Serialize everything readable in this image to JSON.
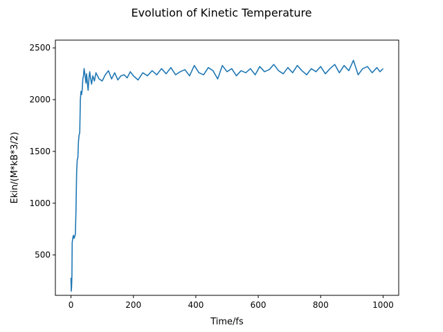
{
  "chart_data": {
    "type": "line",
    "title": "Evolution of Kinetic Temperature",
    "xlabel": "Time/fs",
    "ylabel": "Ekin/(M*kB*3/2)",
    "xlim": [
      -50,
      1050
    ],
    "ylim": [
      110,
      2575
    ],
    "xticks": [
      0,
      200,
      400,
      600,
      800,
      1000
    ],
    "yticks": [
      500,
      1000,
      1500,
      2000,
      2500
    ],
    "grid": false,
    "legend": "none",
    "series": [
      {
        "color": "#1f77b4",
        "x": [
          0,
          1,
          2,
          3,
          4,
          6,
          8,
          10,
          12,
          14,
          16,
          18,
          20,
          22,
          24,
          26,
          28,
          30,
          32,
          34,
          36,
          38,
          40,
          42,
          44,
          46,
          48,
          50,
          52,
          55,
          58,
          60,
          63,
          66,
          70,
          75,
          80,
          90,
          100,
          110,
          120,
          130,
          140,
          150,
          160,
          170,
          180,
          190,
          200,
          215,
          230,
          245,
          260,
          275,
          290,
          305,
          320,
          335,
          350,
          365,
          380,
          395,
          410,
          425,
          440,
          455,
          470,
          485,
          500,
          515,
          530,
          545,
          560,
          575,
          590,
          605,
          620,
          635,
          650,
          665,
          680,
          695,
          710,
          725,
          740,
          755,
          770,
          785,
          800,
          815,
          830,
          845,
          860,
          875,
          890,
          905,
          920,
          935,
          950,
          965,
          980,
          990,
          1000
        ],
        "y": [
          280,
          150,
          190,
          300,
          620,
          670,
          690,
          660,
          680,
          700,
          940,
          1300,
          1420,
          1440,
          1600,
          1660,
          1680,
          2000,
          2080,
          2050,
          2100,
          2200,
          2230,
          2300,
          2260,
          2210,
          2160,
          2250,
          2180,
          2090,
          2220,
          2270,
          2200,
          2150,
          2230,
          2180,
          2260,
          2200,
          2180,
          2240,
          2280,
          2200,
          2260,
          2190,
          2230,
          2240,
          2210,
          2270,
          2230,
          2190,
          2260,
          2230,
          2280,
          2240,
          2300,
          2250,
          2310,
          2240,
          2270,
          2290,
          2230,
          2330,
          2260,
          2240,
          2310,
          2280,
          2200,
          2330,
          2270,
          2300,
          2230,
          2280,
          2260,
          2300,
          2240,
          2320,
          2270,
          2290,
          2340,
          2280,
          2250,
          2310,
          2260,
          2330,
          2280,
          2240,
          2300,
          2270,
          2320,
          2250,
          2300,
          2340,
          2260,
          2330,
          2280,
          2380,
          2240,
          2300,
          2320,
          2260,
          2310,
          2270,
          2300
        ]
      }
    ]
  }
}
